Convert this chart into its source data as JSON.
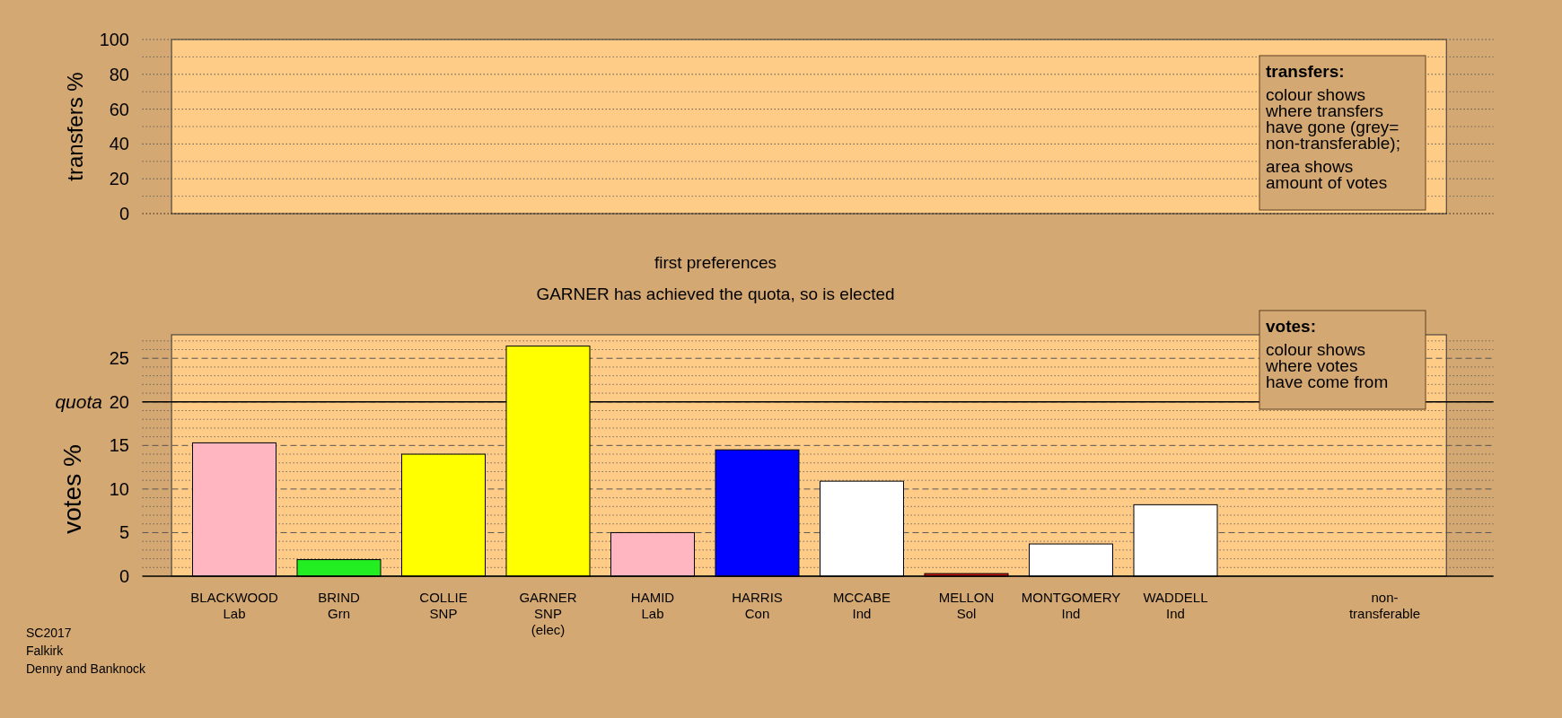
{
  "chart_data": [
    {
      "type": "bar",
      "ylabel": "transfers %",
      "categories": [
        null,
        null,
        null,
        null,
        null,
        null,
        null,
        null,
        null,
        null,
        null,
        null
      ],
      "values": [
        null,
        null,
        null,
        null,
        null,
        null,
        null,
        null,
        null,
        null,
        null,
        null
      ],
      "ylim": [
        0,
        100
      ],
      "yticks": [
        0,
        20,
        40,
        60,
        80,
        100
      ],
      "grid": "y",
      "tick_labels": "y",
      "annotations": [
        "transfers:",
        "colour shows\nwhere transfers\nhave gone (grey=\nnon-transferable);",
        "area shows\namount of votes"
      ]
    },
    {
      "type": "bar",
      "title": "first preferences",
      "subtitle": "GARNER has achieved the quota, so is elected",
      "ylabel": "votes %",
      "categories": [
        "BLACKWOOD\nLab",
        "BRIND\nGrn",
        "COLLIE\nSNP",
        "GARNER\nSNP\n(elec)",
        "HAMID\nLab",
        "HARRIS\nCon",
        "MCCABE\nInd",
        "MELLON\nSol",
        "MONTGOMERY\nInd",
        "WADDELL\nInd",
        null,
        "non-\ntransferable"
      ],
      "values": [
        15.3,
        1.9,
        14.0,
        26.4,
        5.0,
        14.5,
        10.9,
        0.3,
        3.7,
        8.2,
        null,
        null
      ],
      "colors": [
        "#ffb6c1",
        "#22ee22",
        "#ffff00",
        "#ffff00",
        "#ffb6c1",
        "#0000ff",
        "#ffffff",
        "#cc1111",
        "#ffffff",
        "#ffffff",
        null,
        null
      ],
      "ylim": [
        0,
        27.7
      ],
      "yticks": [
        0,
        5,
        10,
        15,
        20,
        25
      ],
      "grid": "y",
      "ref_lines": [
        {
          "axis": "y",
          "value": 20,
          "label": "quota",
          "color": "#000000",
          "line_style": "solid"
        }
      ],
      "annotations": [
        "votes:",
        "colour shows\nwhere votes\nhave come from",
        "SC2017\nFalkirk\nDenny and Banknock"
      ]
    }
  ]
}
